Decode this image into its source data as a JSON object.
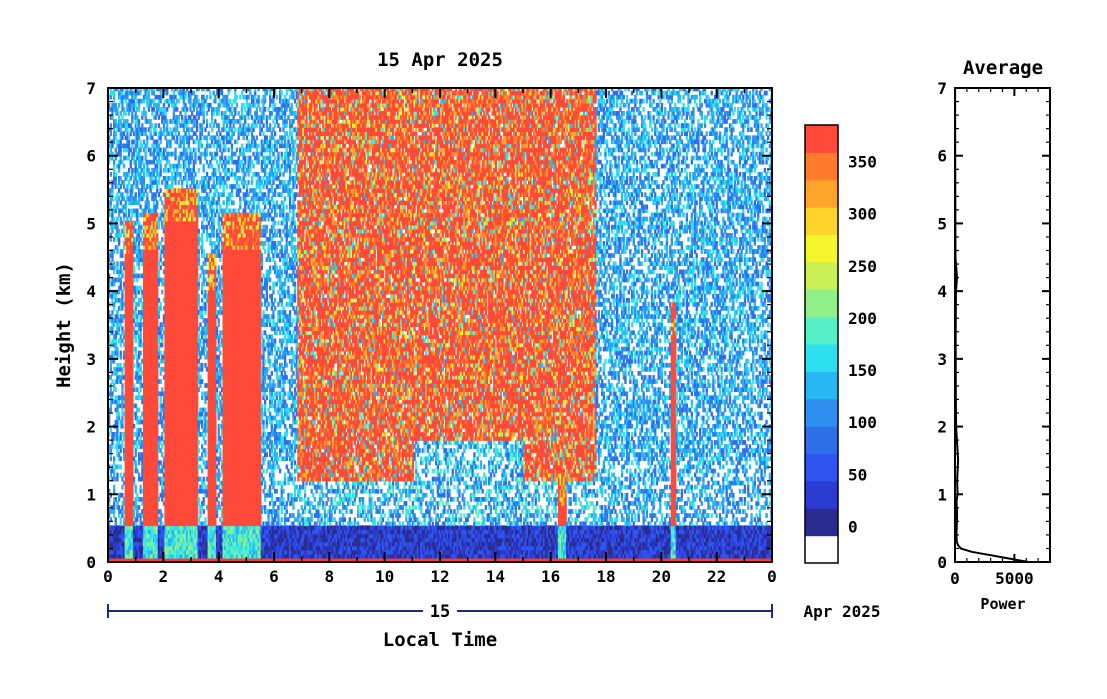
{
  "chart_data": [
    {
      "type": "heatmap",
      "title": "15 Apr 2025",
      "xlabel": "Local Time",
      "ylabel": "Height (km)",
      "xlim": [
        0,
        24
      ],
      "ylim": [
        0,
        7
      ],
      "x_ticks": [
        "0",
        "2",
        "4",
        "6",
        "8",
        "10",
        "12",
        "14",
        "16",
        "18",
        "20",
        "22",
        "0"
      ],
      "y_ticks": [
        "0",
        "1",
        "2",
        "3",
        "4",
        "5",
        "6",
        "7"
      ],
      "date_axis": {
        "day_label": "15",
        "month_year": "Apr 2025"
      },
      "colorbar": {
        "ticks": [
          "0",
          "50",
          "100",
          "150",
          "200",
          "250",
          "300",
          "350"
        ],
        "range": [
          -35,
          385
        ],
        "colors": [
          "#ffffff",
          "#2a2d8f",
          "#2c3bd0",
          "#2f55f0",
          "#2c6fe8",
          "#2f8ff0",
          "#27b7f2",
          "#2de0f0",
          "#55f0c8",
          "#8ff08a",
          "#c8f055",
          "#f5f52c",
          "#ffd42a",
          "#ffa42a",
          "#ff7a2a",
          "#ff4a3a"
        ]
      },
      "features": [
        {
          "type": "rain_shaft",
          "x": [
            0.55,
            0.9
          ],
          "top_km": 5.0,
          "color": "#ff3b30"
        },
        {
          "type": "rain_shaft",
          "x": [
            1.25,
            1.75
          ],
          "top_km": 5.1,
          "color": "#ff3b30"
        },
        {
          "type": "rain_shaft",
          "x": [
            2.0,
            3.2
          ],
          "top_km": 5.5,
          "color": "#ff3b30"
        },
        {
          "type": "rain_shaft",
          "x": [
            3.6,
            3.85
          ],
          "top_km": 4.5,
          "color": "#ff3b30"
        },
        {
          "type": "rain_shaft",
          "x": [
            4.1,
            5.5
          ],
          "top_km": 5.1,
          "color": "#ff3b30"
        },
        {
          "type": "rain_shaft",
          "x": [
            16.25,
            16.55
          ],
          "top_km": 1.3,
          "color": "#ff3b30"
        },
        {
          "type": "rain_shaft",
          "x": [
            20.3,
            20.5
          ],
          "top_km": 3.8,
          "color": "#ff3b30"
        },
        {
          "type": "noise_region",
          "x": [
            6.8,
            17.6
          ],
          "color": "#ff3b30"
        }
      ]
    },
    {
      "type": "line",
      "title": "Average",
      "xlabel": "Power",
      "x_ticks": [
        "0",
        "5000"
      ],
      "y_ticks": [
        "0",
        "1",
        "2",
        "3",
        "4",
        "5",
        "6",
        "7"
      ],
      "xlim": [
        0,
        8000
      ],
      "ylim": [
        0,
        7
      ],
      "profile_height_km": [
        0.0,
        0.05,
        0.1,
        0.15,
        0.2,
        0.25,
        0.3,
        0.4,
        0.5,
        0.7,
        0.9,
        1.0,
        1.2,
        1.5,
        1.8,
        2.0,
        2.5,
        3.0,
        3.5,
        4.0,
        4.2,
        4.5,
        5.0,
        6.0,
        7.0
      ],
      "profile_power": [
        6200,
        4600,
        3000,
        1400,
        500,
        250,
        150,
        120,
        140,
        180,
        130,
        220,
        180,
        260,
        160,
        90,
        70,
        60,
        55,
        80,
        170,
        40,
        30,
        20,
        10
      ]
    }
  ]
}
